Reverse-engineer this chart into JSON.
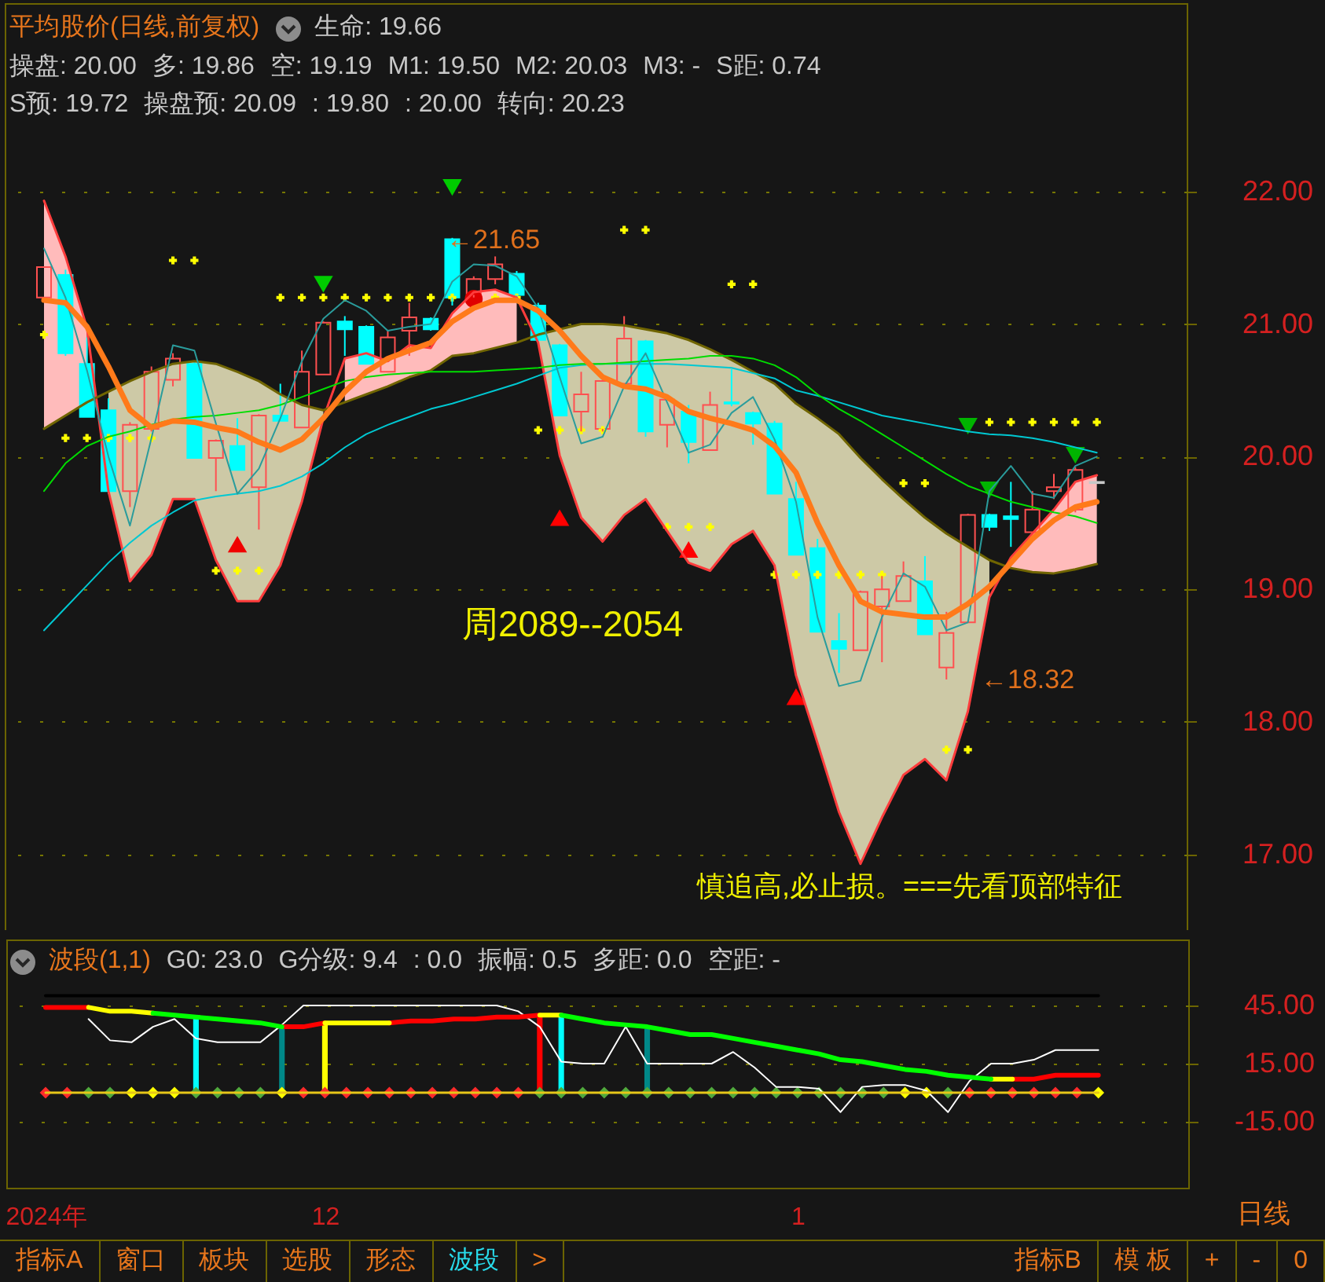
{
  "chart_data": [
    {
      "type": "candlestick",
      "title": "平均股价(日线,前复权)",
      "annotations": [
        "生命: 19.66",
        "操盘: 20.00",
        "多: 19.86",
        "空: 19.19",
        "M1: 19.50",
        "M2: 20.03",
        "M3: -",
        "S距: 0.74",
        "S预: 19.72",
        "操盘预: 20.09",
        ": 19.80",
        ": 20.00",
        "转向: 20.23",
        "周2089--2054",
        "慎追高,必止损。===先看顶部特征",
        "←21.65",
        "←18.32"
      ],
      "categories": [
        null,
        null,
        null,
        null,
        null,
        null,
        null,
        null,
        null,
        null,
        null,
        null,
        null,
        null,
        null,
        null,
        null,
        null,
        null,
        null,
        null,
        null,
        null,
        null,
        null,
        null,
        null,
        null,
        null,
        null,
        null,
        null,
        null,
        null,
        null,
        null,
        null,
        null,
        null,
        null,
        null,
        null,
        null,
        null,
        null,
        null,
        null,
        null,
        null,
        null
      ],
      "ohlc": [
        [
          21.2,
          21.43,
          21.2,
          21.43
        ],
        [
          21.37,
          21.41,
          20.76,
          20.78
        ],
        [
          20.7,
          20.9,
          20.3,
          20.3
        ],
        [
          20.35,
          20.44,
          19.72,
          19.74
        ],
        [
          19.74,
          20.26,
          19.62,
          20.24
        ],
        [
          20.21,
          20.68,
          20.19,
          20.64
        ],
        [
          20.58,
          20.78,
          20.53,
          20.74
        ],
        [
          20.7,
          20.72,
          19.99,
          19.99
        ],
        [
          19.99,
          20.13,
          19.74,
          20.12
        ],
        [
          20.08,
          20.29,
          19.9,
          19.9
        ],
        [
          19.77,
          20.32,
          19.45,
          20.31
        ],
        [
          20.31,
          20.55,
          20.27,
          20.27
        ],
        [
          20.22,
          20.8,
          20.22,
          20.64
        ],
        [
          20.62,
          21.02,
          20.62,
          21.01
        ],
        [
          21.02,
          21.06,
          20.76,
          20.96
        ],
        [
          20.98,
          20.99,
          20.7,
          20.7
        ],
        [
          20.64,
          20.95,
          20.64,
          20.9
        ],
        [
          20.95,
          21.16,
          20.76,
          21.05
        ],
        [
          21.04,
          21.05,
          20.95,
          20.96
        ],
        [
          21.64,
          21.65,
          21.14,
          21.2
        ],
        [
          21.22,
          21.36,
          21.2,
          21.34
        ],
        [
          21.34,
          21.51,
          21.3,
          21.45
        ],
        [
          21.38,
          21.4,
          21.2,
          21.22
        ],
        [
          21.14,
          21.16,
          20.86,
          20.88
        ],
        [
          20.84,
          20.85,
          20.31,
          20.31
        ],
        [
          20.34,
          20.64,
          20.19,
          20.47
        ],
        [
          20.21,
          20.61,
          20.19,
          20.57
        ],
        [
          20.55,
          21.06,
          20.55,
          20.89
        ],
        [
          20.87,
          20.88,
          20.15,
          20.19
        ],
        [
          20.24,
          20.45,
          20.07,
          20.43
        ],
        [
          20.34,
          20.39,
          19.95,
          20.11
        ],
        [
          20.05,
          20.49,
          20.05,
          20.39
        ],
        [
          20.41,
          20.66,
          20.38,
          20.4
        ],
        [
          20.33,
          20.34,
          20.09,
          20.25
        ],
        [
          20.25,
          20.27,
          19.72,
          19.72
        ],
        [
          19.68,
          19.81,
          19.26,
          19.26
        ],
        [
          19.31,
          19.38,
          18.68,
          18.68
        ],
        [
          18.61,
          18.82,
          18.37,
          18.55
        ],
        [
          18.54,
          18.99,
          18.54,
          18.98
        ],
        [
          18.87,
          19.1,
          18.45,
          19.0
        ],
        [
          18.91,
          19.21,
          18.91,
          19.1
        ],
        [
          19.06,
          19.25,
          18.66,
          18.66
        ],
        [
          18.41,
          18.83,
          18.32,
          18.67
        ],
        [
          18.75,
          19.57,
          18.75,
          19.56
        ],
        [
          19.56,
          19.57,
          19.44,
          19.47
        ],
        [
          19.55,
          19.81,
          19.32,
          19.53
        ],
        [
          19.43,
          19.74,
          19.43,
          19.6
        ],
        [
          19.74,
          19.87,
          19.68,
          19.77
        ],
        [
          19.6,
          19.92,
          19.58,
          19.9
        ],
        [
          19.81,
          19.81,
          19.8,
          19.8
        ]
      ],
      "colors": [
        "#ff5050",
        "#00ffff",
        "#00ffff",
        "#00ffff",
        "#ff5050",
        "#ff5050",
        "#ff5050",
        "#00ffff",
        "#ff5050",
        "#00ffff",
        "#ff5050",
        "#00ffff",
        "#ff5050",
        "#ff5050",
        "#00ffff",
        "#00ffff",
        "#ff5050",
        "#ff5050",
        "#00ffff",
        "#00ffff",
        "#ff5050",
        "#ff5050",
        "#00ffff",
        "#00ffff",
        "#00ffff",
        "#ff5050",
        "#ff5050",
        "#ff5050",
        "#00ffff",
        "#ff5050",
        "#00ffff",
        "#ff5050",
        "#00ffff",
        "#00ffff",
        "#00ffff",
        "#00ffff",
        "#00ffff",
        "#00ffff",
        "#ff5050",
        "#ff5050",
        "#ff5050",
        "#00ffff",
        "#ff5050",
        "#ff5050",
        "#00ffff",
        "#00ffff",
        "#ff5050",
        "#ff5050",
        "#ff5050",
        "#c8c8c8"
      ],
      "ylim": [
        16.43,
        23.42
      ],
      "yticks": [
        {
          "value": 17,
          "label": "17.00"
        },
        {
          "value": 18,
          "label": "18.00"
        },
        {
          "value": 19,
          "label": "19.00"
        },
        {
          "value": 20,
          "label": "20.00"
        },
        {
          "value": 21,
          "label": "21.00"
        },
        {
          "value": 22,
          "label": "22.00"
        }
      ],
      "grid": "y",
      "tick_labels": "y",
      "series": [
        {
          "type": "line",
          "color": "#ff3c3c",
          "values": [
            21.93,
            21.51,
            20.97,
            19.74,
            19.06,
            19.26,
            19.68,
            19.68,
            19.22,
            18.91,
            18.91,
            19.18,
            19.66,
            20.29,
            20.74,
            20.78,
            20.72,
            20.84,
            20.82,
            21.08,
            21.24,
            21.26,
            21.2,
            20.86,
            20.01,
            19.54,
            19.36,
            19.56,
            19.68,
            19.44,
            19.2,
            19.14,
            19.34,
            19.44,
            19.18,
            18.35,
            17.84,
            17.32,
            16.93,
            17.28,
            17.6,
            17.72,
            17.56,
            18.08,
            18.94,
            19.24,
            19.42,
            19.6,
            19.81,
            19.86
          ],
          "lower": [
            20.21,
            20.31,
            20.41,
            null,
            null,
            null,
            null,
            null,
            null,
            null,
            null,
            null,
            null,
            null,
            20.41,
            20.47,
            20.53,
            20.6,
            20.65,
            20.76,
            20.78,
            20.82,
            20.86,
            null,
            null,
            null,
            null,
            null,
            null,
            null,
            null,
            null,
            null,
            null,
            null,
            null,
            null,
            null,
            null,
            null,
            null,
            null,
            null,
            null,
            null,
            19.16,
            19.13,
            19.12,
            19.15,
            19.19
          ],
          "upper": [
            21.93,
            21.51,
            20.97,
            null,
            null,
            null,
            null,
            null,
            null,
            null,
            null,
            null,
            null,
            null,
            20.74,
            20.78,
            20.72,
            20.84,
            20.82,
            21.08,
            21.24,
            21.26,
            21.2,
            null,
            null,
            null,
            null,
            null,
            null,
            null,
            null,
            null,
            null,
            null,
            null,
            null,
            null,
            null,
            null,
            null,
            null,
            null,
            null,
            null,
            null,
            19.24,
            19.42,
            19.6,
            19.81,
            19.86
          ]
        },
        {
          "type": "line",
          "color": "#706500",
          "values": [
            20.21,
            20.31,
            20.41,
            20.49,
            20.57,
            20.64,
            20.7,
            20.72,
            20.7,
            20.64,
            20.57,
            20.47,
            20.39,
            20.35,
            20.41,
            20.47,
            20.53,
            20.6,
            20.65,
            20.76,
            20.78,
            20.82,
            20.86,
            20.92,
            20.96,
            21.0,
            21.0,
            20.99,
            20.96,
            20.93,
            20.88,
            20.81,
            20.73,
            20.64,
            20.55,
            20.4,
            20.29,
            20.17,
            19.99,
            19.83,
            19.68,
            19.54,
            19.42,
            19.32,
            19.22,
            19.16,
            19.13,
            19.12,
            19.15,
            19.19
          ],
          "lower": [
            null,
            null,
            null,
            19.74,
            19.06,
            19.26,
            19.68,
            19.68,
            19.22,
            18.91,
            18.91,
            19.18,
            19.66,
            20.29,
            null,
            null,
            null,
            null,
            null,
            null,
            null,
            null,
            null,
            20.86,
            20.01,
            19.54,
            19.36,
            19.56,
            19.68,
            19.44,
            19.2,
            19.14,
            19.34,
            19.44,
            19.18,
            18.35,
            17.84,
            17.32,
            16.93,
            17.28,
            17.6,
            17.72,
            17.56,
            18.08,
            18.94,
            null,
            null,
            null,
            null,
            null
          ],
          "upper": [
            null,
            null,
            null,
            20.49,
            20.57,
            20.64,
            20.7,
            20.72,
            20.7,
            20.64,
            20.57,
            20.47,
            20.39,
            20.35,
            null,
            null,
            null,
            null,
            null,
            null,
            null,
            null,
            null,
            20.92,
            20.96,
            21.0,
            21.0,
            20.99,
            20.96,
            20.93,
            20.88,
            20.81,
            20.73,
            20.64,
            20.55,
            20.4,
            20.29,
            20.17,
            19.99,
            19.83,
            19.68,
            19.54,
            19.42,
            19.32,
            19.22,
            null,
            null,
            null,
            null,
            null
          ]
        },
        {
          "type": "line",
          "color": "#00c8d2",
          "values": [
            18.69,
            18.86,
            19.03,
            19.2,
            19.35,
            19.48,
            19.58,
            19.67,
            19.7,
            19.72,
            19.74,
            19.78,
            19.85,
            19.95,
            20.07,
            20.17,
            20.24,
            20.3,
            20.36,
            20.4,
            20.45,
            20.5,
            20.55,
            20.61,
            20.67,
            20.69,
            20.7,
            20.7,
            20.7,
            20.7,
            20.69,
            20.68,
            20.67,
            20.63,
            20.59,
            20.5,
            20.46,
            20.41,
            20.36,
            20.31,
            20.28,
            20.25,
            20.22,
            20.19,
            20.17,
            20.16,
            20.14,
            20.11,
            20.07,
            20.03
          ]
        },
        {
          "type": "line",
          "color": "#00dd00",
          "values": [
            19.74,
            19.95,
            20.08,
            20.15,
            20.19,
            20.24,
            20.28,
            20.3,
            20.31,
            20.33,
            20.35,
            20.39,
            20.45,
            20.51,
            20.57,
            20.6,
            20.62,
            20.63,
            20.64,
            20.64,
            20.64,
            20.65,
            20.66,
            20.67,
            20.69,
            20.7,
            20.7,
            20.71,
            20.72,
            20.73,
            20.74,
            20.76,
            20.76,
            20.74,
            20.69,
            20.6,
            20.47,
            20.36,
            20.27,
            20.17,
            20.07,
            19.97,
            19.87,
            19.78,
            19.72,
            19.66,
            19.62,
            19.58,
            19.55,
            19.5
          ]
        },
        {
          "type": "line",
          "color": "#2a9c9c",
          "values": [
            21.57,
            21.2,
            20.65,
            20.0,
            19.48,
            20.14,
            20.84,
            20.8,
            20.25,
            19.72,
            19.91,
            20.29,
            20.72,
            21.04,
            21.18,
            21.1,
            20.95,
            20.98,
            21.0,
            21.32,
            21.45,
            21.44,
            21.36,
            21.12,
            20.6,
            20.1,
            20.15,
            20.53,
            20.78,
            20.41,
            20.03,
            20.09,
            20.33,
            20.45,
            20.13,
            19.66,
            18.79,
            18.27,
            18.31,
            18.79,
            19.12,
            19.02,
            18.69,
            18.75,
            19.74,
            19.93,
            19.72,
            19.69,
            19.93,
            20.0
          ]
        },
        {
          "type": "line",
          "color": "#ff7a1a",
          "values": [
            21.18,
            21.16,
            20.98,
            20.68,
            20.35,
            20.22,
            20.27,
            20.26,
            20.22,
            20.19,
            20.11,
            20.05,
            20.13,
            20.29,
            20.49,
            20.64,
            20.74,
            20.8,
            20.86,
            21.02,
            21.12,
            21.18,
            21.18,
            21.1,
            20.95,
            20.76,
            20.6,
            20.53,
            20.51,
            20.45,
            20.34,
            20.29,
            20.25,
            20.2,
            20.08,
            19.88,
            19.5,
            19.18,
            18.91,
            18.83,
            18.81,
            18.79,
            18.79,
            18.89,
            19.02,
            19.2,
            19.38,
            19.52,
            19.62,
            19.66
          ]
        },
        {
          "type": "scatter",
          "marker": "cross",
          "color": "#ffff00",
          "values": [
            20.92,
            20.14,
            20.14,
            20.14,
            20.14,
            20.14,
            21.48,
            21.48,
            19.14,
            19.14,
            19.14,
            21.2,
            21.2,
            21.2,
            21.2,
            21.2,
            21.2,
            21.2,
            21.2,
            21.2,
            null,
            21.2,
            21.2,
            20.2,
            20.2,
            20.2,
            20.2,
            21.71,
            21.71,
            19.47,
            19.47,
            19.47,
            21.3,
            21.3,
            19.11,
            19.11,
            19.11,
            19.11,
            19.11,
            19.11,
            19.8,
            19.8,
            17.79,
            17.79,
            20.26,
            20.26,
            20.26,
            20.26,
            20.26,
            20.26
          ]
        },
        {
          "type": "scatter",
          "marker": "triangle",
          "color": "#ff0000",
          "values": [
            null,
            null,
            null,
            null,
            null,
            null,
            null,
            null,
            null,
            null,
            null,
            null,
            null,
            null,
            null,
            null,
            null,
            null,
            null,
            null,
            null,
            null,
            null,
            null,
            19.54,
            null,
            null,
            null,
            null,
            null,
            19.3,
            null,
            null,
            null,
            null,
            18.19,
            null,
            null,
            null,
            null,
            null,
            null,
            null,
            null,
            null,
            null,
            null,
            null,
            null,
            null
          ]
        },
        {
          "type": "scatter",
          "marker": "triangle-down",
          "color": "#00cc00",
          "values": [
            null,
            null,
            null,
            null,
            null,
            null,
            null,
            null,
            null,
            null,
            null,
            null,
            null,
            21.3,
            null,
            null,
            null,
            null,
            null,
            22.03,
            null,
            null,
            null,
            null,
            null,
            null,
            null,
            null,
            null,
            null,
            null,
            null,
            null,
            null,
            null,
            null,
            null,
            null,
            null,
            null,
            null,
            null,
            null,
            null,
            null,
            null,
            null,
            null,
            null,
            null
          ]
        },
        {
          "type": "scatter",
          "marker": "triangle-down",
          "color": "#00b400",
          "values": [
            null,
            null,
            null,
            null,
            null,
            null,
            null,
            null,
            null,
            null,
            null,
            null,
            null,
            null,
            null,
            null,
            null,
            null,
            null,
            null,
            null,
            null,
            null,
            null,
            null,
            null,
            null,
            null,
            null,
            null,
            null,
            null,
            null,
            null,
            null,
            null,
            null,
            null,
            null,
            null,
            null,
            null,
            null,
            20.23,
            19.75,
            null,
            null,
            null,
            20.01,
            null
          ]
        },
        {
          "type": "scatter",
          "marker": "triangle",
          "color": "#f00000",
          "values": [
            null,
            null,
            null,
            null,
            null,
            null,
            null,
            null,
            null,
            19.34,
            null,
            null,
            null,
            null,
            null,
            null,
            null,
            null,
            null,
            null,
            null,
            null,
            null,
            null,
            null,
            null,
            null,
            null,
            null,
            null,
            null,
            null,
            null,
            null,
            null,
            null,
            null,
            null,
            null,
            null,
            null,
            null,
            null,
            null,
            null,
            null,
            null,
            null,
            null,
            null
          ]
        },
        {
          "type": "scatter",
          "marker": "circle",
          "color": "#e00000",
          "values": [
            null,
            null,
            null,
            null,
            null,
            null,
            null,
            null,
            null,
            null,
            null,
            null,
            null,
            null,
            null,
            null,
            null,
            null,
            null,
            null,
            21.19,
            null,
            null,
            null,
            null,
            null,
            null,
            null,
            null,
            null,
            null,
            null,
            null,
            null,
            null,
            null,
            null,
            null,
            null,
            null,
            null,
            null,
            null,
            null,
            null,
            null,
            null,
            null,
            null,
            null
          ]
        }
      ]
    },
    {
      "type": "line",
      "title": "波段(1,1)",
      "annotations": [
        "G0: 23.0",
        "G分级: 9.4",
        ": 0.0",
        "振幅: 0.5",
        "多距: 0.0",
        "空距: -"
      ],
      "categories": [
        "2024年",
        null,
        null,
        null,
        null,
        null,
        null,
        null,
        null,
        null,
        null,
        null,
        null,
        "12",
        null,
        null,
        null,
        null,
        null,
        null,
        null,
        null,
        null,
        null,
        null,
        null,
        null,
        null,
        null,
        null,
        null,
        null,
        null,
        null,
        null,
        "1",
        null,
        null,
        null,
        null,
        null,
        null,
        null,
        null,
        null,
        null,
        null,
        null,
        null,
        null
      ],
      "ylim": [
        -49,
        79
      ],
      "yticks": [
        {
          "value": -15,
          "label": "-15.00"
        },
        {
          "value": 15,
          "label": "15.00"
        },
        {
          "value": 45,
          "label": "45.00"
        }
      ],
      "grid": "y",
      "series": [
        {
          "type": "line",
          "color": "#ffffff",
          "values": [
            null,
            null,
            38,
            27,
            26,
            34,
            38,
            28,
            26,
            26,
            26,
            35,
            45,
            45,
            45,
            45,
            45,
            45,
            45,
            45,
            45,
            45,
            42,
            34,
            16,
            15,
            15,
            34,
            15,
            15,
            15,
            15,
            21,
            13,
            3,
            3,
            2,
            -10,
            3,
            4,
            4,
            1,
            -10,
            6,
            15,
            15,
            17,
            22,
            22,
            22
          ]
        },
        {
          "type": "line",
          "color": "#ff0000",
          "values": [
            44,
            44,
            44,
            null,
            null,
            null,
            null,
            null,
            null,
            null,
            null,
            34,
            34,
            36,
            null,
            null,
            36,
            37,
            37,
            38,
            38,
            39,
            39,
            40,
            null,
            null,
            null,
            null,
            null,
            null,
            null,
            null,
            null,
            null,
            null,
            null,
            null,
            null,
            null,
            null,
            null,
            null,
            null,
            null,
            null,
            7,
            7,
            9,
            9,
            9
          ]
        },
        {
          "type": "line",
          "color": "#ffff00",
          "values": [
            null,
            null,
            44,
            42,
            42,
            41,
            null,
            null,
            null,
            null,
            null,
            null,
            null,
            36,
            36,
            36,
            36,
            null,
            null,
            null,
            null,
            null,
            null,
            40,
            40,
            null,
            null,
            null,
            null,
            null,
            null,
            null,
            null,
            null,
            null,
            null,
            null,
            null,
            null,
            null,
            null,
            null,
            null,
            null,
            7,
            7,
            null,
            null,
            null,
            null
          ]
        },
        {
          "type": "line",
          "color": "#00ff00",
          "values": [
            null,
            null,
            null,
            null,
            null,
            41,
            40,
            39,
            38,
            37,
            36,
            34,
            null,
            null,
            null,
            null,
            null,
            null,
            null,
            null,
            null,
            null,
            null,
            null,
            40,
            38,
            36,
            35,
            34,
            32,
            30,
            30,
            28,
            26,
            24,
            22,
            20,
            17,
            16,
            14,
            12,
            11,
            9,
            8,
            7,
            null,
            null,
            null,
            null,
            null
          ]
        },
        {
          "type": "line",
          "color": "#000000",
          "values": [
            50,
            50,
            50,
            50,
            50,
            50,
            50,
            50,
            50,
            50,
            50,
            50,
            50,
            50,
            50,
            50,
            50,
            50,
            50,
            50,
            50,
            50,
            50,
            50,
            50,
            50,
            50,
            50,
            50,
            50,
            50,
            50,
            50,
            50,
            50,
            50,
            50,
            50,
            50,
            50,
            50,
            50,
            50,
            50,
            50,
            50,
            50,
            50,
            50,
            50
          ]
        },
        {
          "type": "line",
          "color": "#e6c619",
          "values": [
            0,
            0,
            0,
            0,
            0,
            0,
            0,
            0,
            0,
            0,
            0,
            0,
            0,
            0,
            0,
            0,
            0,
            0,
            0,
            0,
            0,
            0,
            0,
            0,
            0,
            0,
            0,
            0,
            0,
            0,
            0,
            0,
            0,
            0,
            0,
            0,
            0,
            0,
            0,
            0,
            0,
            0,
            0,
            0,
            0,
            0,
            0,
            0,
            0,
            0
          ]
        },
        {
          "type": "bar",
          "values": [
            null,
            null,
            null,
            null,
            null,
            null,
            null,
            39,
            null,
            null,
            null,
            34,
            null,
            36,
            null,
            null,
            null,
            null,
            null,
            null,
            null,
            null,
            null,
            40,
            40,
            null,
            null,
            null,
            33,
            null,
            null,
            null,
            null,
            null,
            null,
            null,
            null,
            null,
            null,
            null,
            null,
            null,
            null,
            null,
            null,
            null,
            null,
            null,
            null,
            null
          ],
          "colors": [
            null,
            null,
            null,
            null,
            null,
            null,
            null,
            "#00ffff",
            null,
            null,
            null,
            "#008888",
            null,
            "#ffff00",
            null,
            null,
            null,
            null,
            null,
            null,
            null,
            null,
            null,
            "#ff0000",
            "#00ffff",
            null,
            null,
            null,
            "#008888",
            null,
            null,
            null,
            null,
            null,
            null,
            null,
            null,
            null,
            null,
            null,
            null,
            null,
            null,
            null,
            null,
            null,
            null,
            null,
            null,
            null
          ]
        },
        {
          "type": "scatter",
          "marker": "diamond",
          "values": [
            0,
            0,
            0,
            0,
            0,
            0,
            0,
            0,
            0,
            0,
            0,
            0,
            0,
            0,
            0,
            0,
            0,
            0,
            0,
            0,
            0,
            0,
            0,
            0,
            0,
            0,
            0,
            0,
            0,
            0,
            0,
            0,
            0,
            0,
            0,
            0,
            0,
            0,
            0,
            0,
            0,
            0,
            0,
            0,
            0,
            0,
            0,
            0,
            0,
            0
          ],
          "colors": [
            "#ff2a2a",
            "#ff2a2a",
            "#50aa3c",
            "#50aa3c",
            "#ffff00",
            "#ffff00",
            "#ffff00",
            "#50aa3c",
            "#50aa3c",
            "#50aa3c",
            "#50aa3c",
            "#ffff00",
            "#ff2a2a",
            "#ff2a2a",
            "#ff2a2a",
            "#ff2a2a",
            "#ff2a2a",
            "#ff2a2a",
            "#ff2a2a",
            "#ff2a2a",
            "#ff2a2a",
            "#ff2a2a",
            "#ff2a2a",
            "#50aa3c",
            "#50aa3c",
            "#50aa3c",
            "#50aa3c",
            "#50aa3c",
            "#50aa3c",
            "#50aa3c",
            "#50aa3c",
            "#50aa3c",
            "#50aa3c",
            "#50aa3c",
            "#50aa3c",
            "#50aa3c",
            "#50aa3c",
            "#50aa3c",
            "#50aa3c",
            "#50aa3c",
            "#ffff00",
            "#ffff00",
            "#50aa3c",
            "#ff2a2a",
            "#ff2a2a",
            "#ff2a2a",
            "#ff2a2a",
            "#ff2a2a",
            "#ff2a2a",
            "#ffff00"
          ]
        }
      ]
    },
    {
      "type": "other",
      "annotations": [
        "日线",
        "指标A",
        "窗口",
        "板块",
        "选股",
        "形态",
        "波段",
        ">",
        "指标B",
        "模 板",
        "+",
        "-",
        "0"
      ]
    }
  ]
}
